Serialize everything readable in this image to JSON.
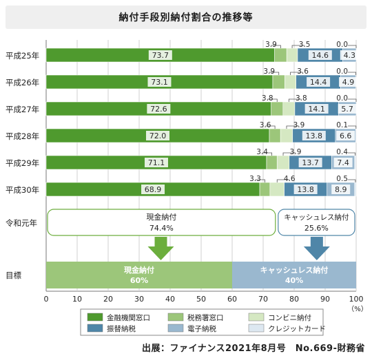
{
  "chart_data": {
    "type": "bar",
    "title": "納付手段別納付割合の推移等",
    "stacked": true,
    "orientation": "horizontal",
    "categories": [
      "平成25年",
      "平成26年",
      "平成27年",
      "平成28年",
      "平成29年",
      "平成30年"
    ],
    "series": [
      {
        "name": "金融機関窓口",
        "color": "#4f9a2e",
        "values": [
          73.7,
          73.1,
          72.6,
          72.0,
          71.1,
          68.9
        ]
      },
      {
        "name": "税務署窓口",
        "color": "#9cc67a",
        "values": [
          3.9,
          3.9,
          3.8,
          3.6,
          3.4,
          3.3
        ]
      },
      {
        "name": "コンビニ納付",
        "color": "#d5e8c2",
        "values": [
          3.5,
          3.6,
          3.8,
          3.9,
          3.9,
          4.6
        ]
      },
      {
        "name": "振替納税",
        "color": "#4f86a8",
        "values": [
          14.6,
          14.4,
          14.1,
          13.8,
          13.7,
          13.8
        ]
      },
      {
        "name": "電子納税",
        "color": "#9ab8cf",
        "values": [
          4.3,
          4.9,
          5.7,
          6.6,
          7.4,
          8.9
        ]
      },
      {
        "name": "クレジットカード",
        "color": "#dde8f1",
        "values": [
          0.0,
          0.0,
          0.0,
          0.1,
          0.4,
          0.5
        ]
      }
    ],
    "outside_labels": [
      {
        "series": 1,
        "text": [
          "3.9",
          "3.9",
          "3.8",
          "3.6",
          "3.4",
          "3.3"
        ]
      },
      {
        "series": 2,
        "text": [
          "3.5",
          "3.6",
          "3.8",
          "3.9",
          "3.9",
          "4.6"
        ]
      },
      {
        "series": 5,
        "text": [
          "0.0",
          "0.0",
          "0.0",
          "0.1",
          "0.4",
          "0.5"
        ]
      }
    ],
    "inside_labels": [
      {
        "series": 0,
        "text": [
          "73.7",
          "73.1",
          "72.6",
          "72.0",
          "71.1",
          "68.9"
        ]
      },
      {
        "series": 3,
        "text": [
          "14.6",
          "14.4",
          "14.1",
          "13.8",
          "13.7",
          "13.8"
        ]
      },
      {
        "series": 4,
        "text": [
          "4.3",
          "4.9",
          "5.7",
          "6.6",
          "7.4",
          "8.9"
        ]
      }
    ],
    "reiwa": {
      "label": "令和元年",
      "cash_label": "現金納付",
      "cash_value": "74.4%",
      "cash": 74.4,
      "cashless_label": "キャッシュレス納付",
      "cashless_value": "25.6%",
      "cashless": 25.6
    },
    "target": {
      "label": "目標",
      "cash_label": "現金納付",
      "cash_value": "60%",
      "cash": 60,
      "cashless_label": "キャッシュレス納付",
      "cashless_value": "40%",
      "cashless": 40,
      "cash_color": "#9cc67a",
      "cashless_color": "#9ab8cf"
    },
    "arrow_colors": {
      "cash": "#6cae3d",
      "cashless": "#4f86a8"
    },
    "xlim": [
      0,
      100
    ],
    "xticks": [
      0,
      10,
      20,
      30,
      40,
      50,
      60,
      70,
      80,
      90,
      100
    ],
    "xunit": "（%）",
    "legend_position": "bottom"
  },
  "source": "出展：ファイナンス2021年8月号　No.669-財務省"
}
